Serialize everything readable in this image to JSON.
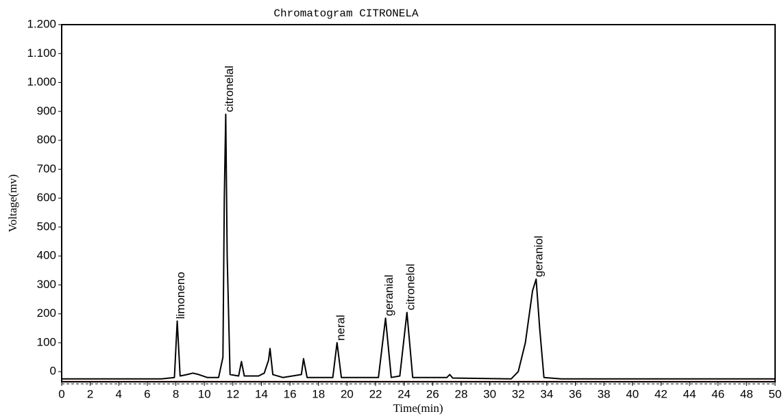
{
  "chart_data": {
    "type": "line",
    "title": "Chromatogram  CITRONELA",
    "x_label": "Time(min)",
    "y_label": "Voltage(mv)",
    "xlim": [
      0,
      50
    ],
    "ylim": [
      -35,
      1200
    ],
    "xticks": [
      0,
      2,
      4,
      6,
      8,
      10,
      12,
      14,
      16,
      18,
      20,
      22,
      24,
      26,
      28,
      30,
      32,
      34,
      36,
      38,
      40,
      42,
      44,
      46,
      48,
      50
    ],
    "yticks": [
      0,
      100,
      200,
      300,
      400,
      500,
      600,
      700,
      800,
      900,
      {
        "value": 1000,
        "label": "1.000"
      },
      {
        "value": 1100,
        "label": "1.100"
      },
      {
        "value": 1200,
        "label": "1.200"
      }
    ],
    "series": [
      {
        "color": "#000000",
        "x": [
          0,
          7,
          7.9,
          8.1,
          8.3,
          8.8,
          9.2,
          9.6,
          10.2,
          11.0,
          11.3,
          11.4,
          11.5,
          11.6,
          11.8,
          12.4,
          12.6,
          12.8,
          13.8,
          14.2,
          14.5,
          14.6,
          14.8,
          15.5,
          16.8,
          16.95,
          17.2,
          19.0,
          19.3,
          19.6,
          22.2,
          22.7,
          23.1,
          23.7,
          24.2,
          24.6,
          27.0,
          27.2,
          27.4,
          31.5,
          32.0,
          32.5,
          33.0,
          33.25,
          33.5,
          33.8,
          35,
          50
        ],
        "values": [
          -25,
          -25,
          -20,
          175,
          -15,
          -10,
          -5,
          -10,
          -20,
          -20,
          50,
          600,
          890,
          400,
          -10,
          -15,
          35,
          -15,
          -15,
          -5,
          40,
          80,
          -10,
          -20,
          -10,
          45,
          -20,
          -20,
          100,
          -20,
          -20,
          185,
          -20,
          -15,
          205,
          -20,
          -20,
          -10,
          -22,
          -25,
          0,
          100,
          280,
          320,
          150,
          -20,
          -25,
          -25
        ]
      }
    ],
    "annotations": [
      {
        "text": "limoneno",
        "x": 8.1,
        "y": 175
      },
      {
        "text": "citronelal",
        "x": 11.5,
        "y": 890
      },
      {
        "text": "neral",
        "x": 19.3,
        "y": 100
      },
      {
        "text": "geranial",
        "x": 22.7,
        "y": 185
      },
      {
        "text": "citronelol",
        "x": 24.2,
        "y": 205
      },
      {
        "text": "geraniol",
        "x": 33.2,
        "y": 320
      }
    ]
  }
}
